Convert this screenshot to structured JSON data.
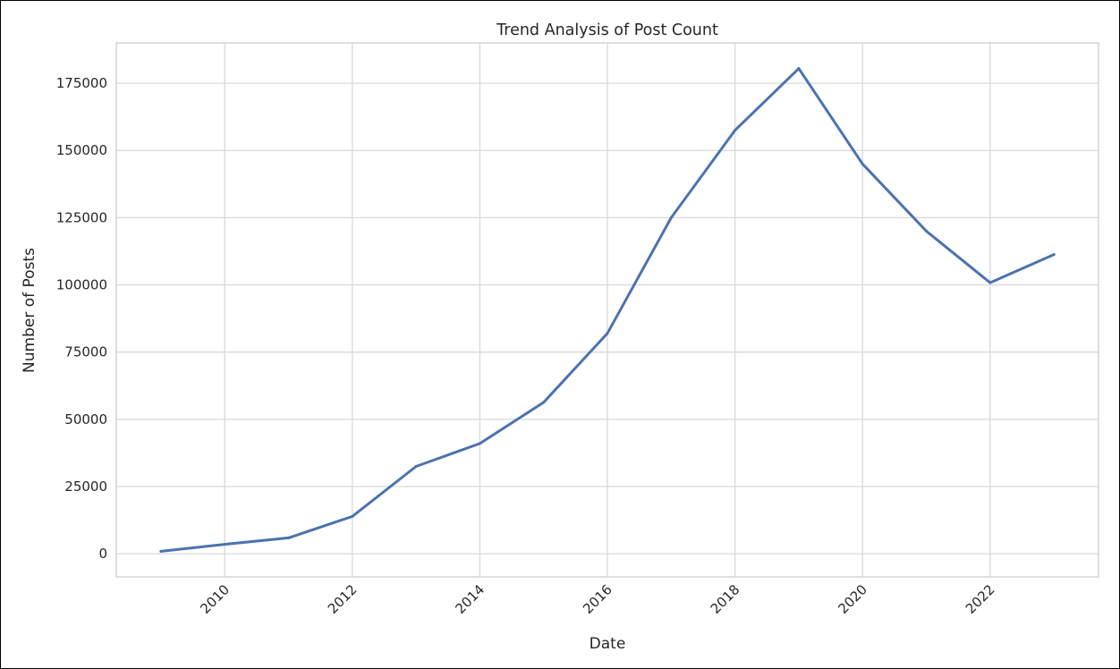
{
  "chart_data": {
    "type": "line",
    "title": "Trend Analysis of Post Count",
    "xlabel": "Date",
    "ylabel": "Number of Posts",
    "x": [
      2009,
      2010,
      2011,
      2012,
      2013,
      2014,
      2015,
      2016,
      2017,
      2018,
      2019,
      2020,
      2021,
      2022,
      2023
    ],
    "series": [
      {
        "values": [
          900,
          3500,
          5900,
          13900,
          32500,
          41000,
          56300,
          82000,
          125000,
          157500,
          180500,
          145000,
          120000,
          100800,
          111300
        ],
        "color": "#4c72b0"
      }
    ],
    "xticks": [
      "2010",
      "2012",
      "2014",
      "2016",
      "2018",
      "2020",
      "2022"
    ],
    "yticks": [
      "0",
      "25000",
      "50000",
      "75000",
      "100000",
      "125000",
      "150000",
      "175000"
    ],
    "xlim": [
      2008.3,
      2023.7
    ],
    "ylim": [
      -8600,
      190000
    ],
    "grid": true,
    "legend": "none",
    "colors": {
      "grid": "#d9d9d9",
      "spine": "#cccccc",
      "text": "#262626",
      "background": "#ffffff"
    }
  }
}
